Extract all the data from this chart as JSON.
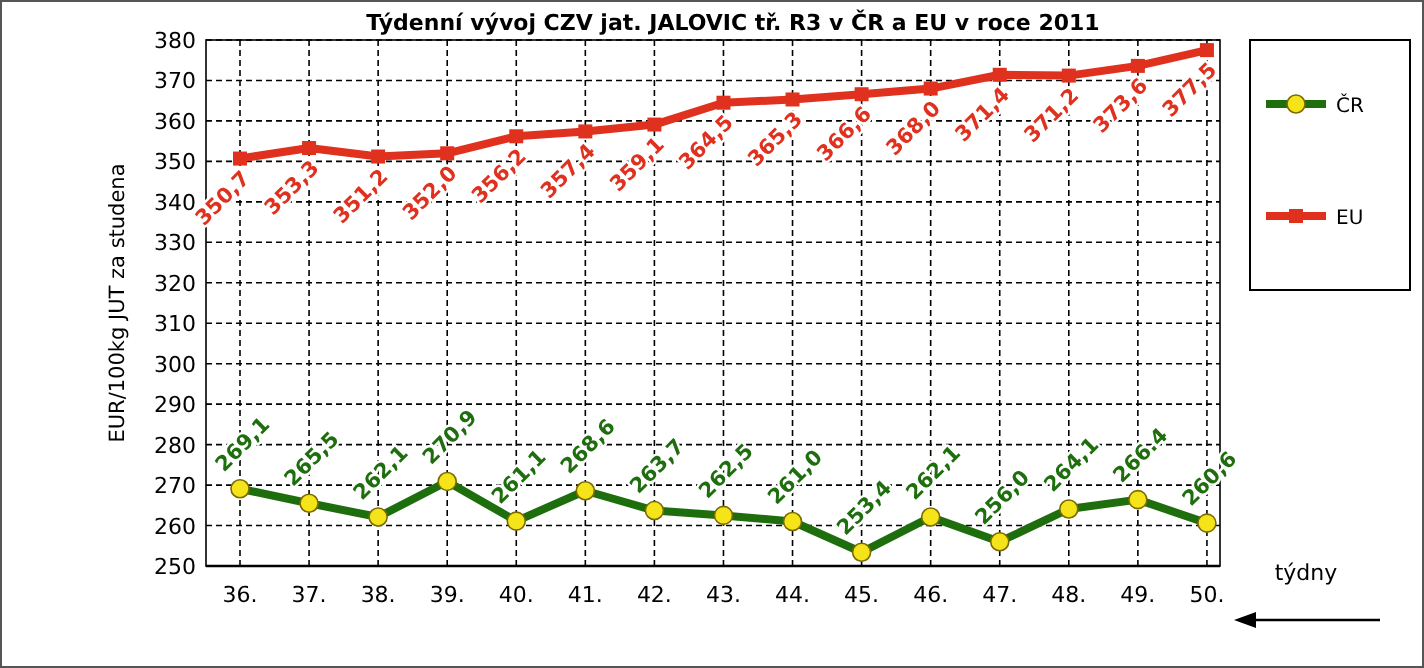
{
  "chart_data": {
    "type": "line",
    "title": "Týdenní vývoj CZV jat. JALOVIC tř. R3  v ČR a EU v roce 2011",
    "ylabel": "EUR/100kg JUT za studena",
    "xlabel": "týdny",
    "categories": [
      "36.",
      "37.",
      "38.",
      "39.",
      "40.",
      "41.",
      "42.",
      "43.",
      "44.",
      "45.",
      "46.",
      "47.",
      "48.",
      "49.",
      "50."
    ],
    "ylim": [
      250,
      380
    ],
    "yticks": [
      250,
      260,
      270,
      280,
      290,
      300,
      310,
      320,
      330,
      340,
      350,
      360,
      370,
      380
    ],
    "grid": true,
    "legend": "right",
    "line_style": "solid",
    "series": [
      {
        "name": "ČR",
        "color": "#1e6e0e",
        "marker": "circle",
        "values": [
          269.1,
          265.5,
          262.1,
          270.9,
          261.1,
          268.6,
          263.7,
          262.5,
          261.0,
          253.4,
          262.1,
          256.0,
          264.1,
          266.4,
          260.6
        ],
        "value_labels": [
          "269,1",
          "265,5",
          "262,1",
          "270,9",
          "261,1",
          "268,6",
          "263,7",
          "262,5",
          "261,0",
          "253,4",
          "262,1",
          "256,0",
          "264,1",
          "266.4",
          "260,6"
        ]
      },
      {
        "name": "EU",
        "color": "#e0301e",
        "marker": "square",
        "values": [
          350.7,
          353.3,
          351.2,
          352.0,
          356.2,
          357.4,
          359.1,
          364.5,
          365.3,
          366.6,
          368.0,
          371.4,
          371.2,
          373.6,
          377.5
        ],
        "value_labels": [
          "350,7",
          "353,3",
          "351,2",
          "352,0",
          "356,2",
          "357,4",
          "359,1",
          "364,5",
          "365,3",
          "366,6",
          "368,0",
          "371,4",
          "371,2",
          "373,6",
          "377,5"
        ]
      }
    ]
  }
}
